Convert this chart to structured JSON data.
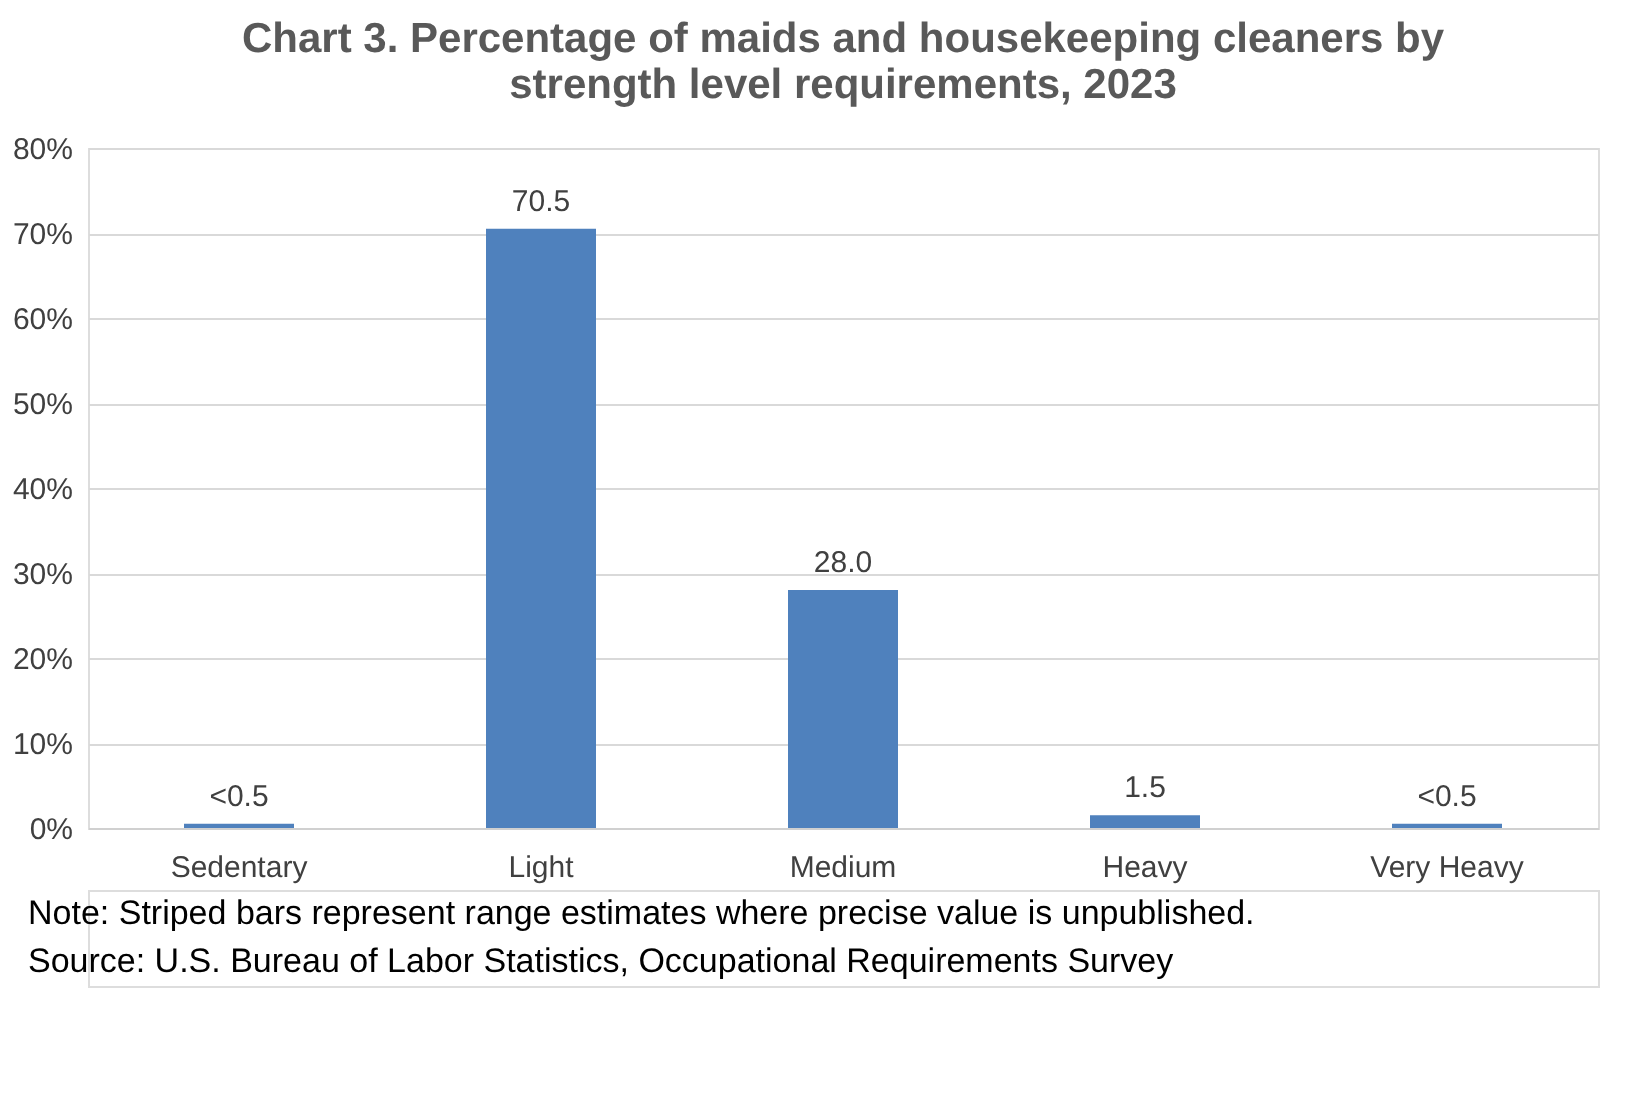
{
  "chart_data": {
    "type": "bar",
    "title": "Chart 3. Percentage of maids and housekeeping cleaners by strength level requirements, 2023",
    "categories": [
      "Sedentary",
      "Light",
      "Medium",
      "Heavy",
      "Very Heavy"
    ],
    "values": [
      0.5,
      70.5,
      28.0,
      1.5,
      0.5
    ],
    "value_labels": [
      "<0.5",
      "70.5",
      "28.0",
      "1.5",
      "<0.5"
    ],
    "colors": [
      "#4f81bd",
      "#4f81bd",
      "#4f81bd",
      "#4f81bd",
      "#4f81bd"
    ],
    "ylim": [
      0,
      80
    ],
    "yticks": [
      {
        "value": 0,
        "label": "0%"
      },
      {
        "value": 10,
        "label": "10%"
      },
      {
        "value": 20,
        "label": "20%"
      },
      {
        "value": 30,
        "label": "30%"
      },
      {
        "value": 40,
        "label": "40%"
      },
      {
        "value": 50,
        "label": "50%"
      },
      {
        "value": 60,
        "label": "60%"
      },
      {
        "value": 70,
        "label": "70%"
      },
      {
        "value": 80,
        "label": "80%"
      }
    ],
    "grid": "y",
    "annotations": [
      "Note: Striped bars represent range estimates where precise value is unpublished.",
      "Source: U.S. Bureau of Labor Statistics, Occupational Requirements Survey"
    ]
  }
}
